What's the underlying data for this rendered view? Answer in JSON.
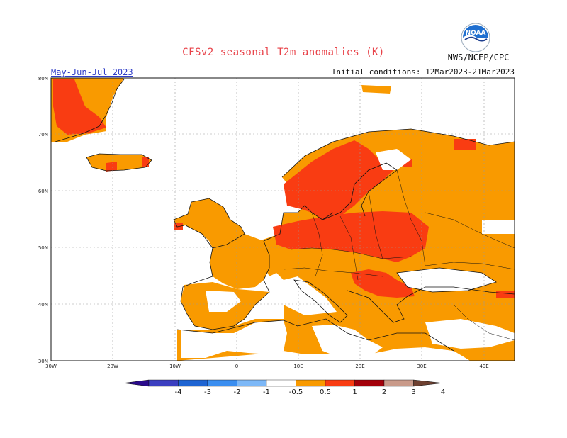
{
  "title": "CFSv2 seasonal T2m anomalies (K)",
  "period": "May-Jun-Jul 2023",
  "initial_conditions": "Initial conditions: 12Mar2023-21Mar2023",
  "agency": "NWS/NCEP/CPC",
  "logo_text": "NOAA",
  "lat_ticks": [
    "30N",
    "40N",
    "50N",
    "60N",
    "70N",
    "80N"
  ],
  "lon_ticks": [
    "30W",
    "20W",
    "10W",
    "0",
    "10E",
    "20E",
    "30E",
    "40E"
  ],
  "colorbar": {
    "labels": [
      "-4",
      "-3",
      "-2",
      "-1",
      "-0.5",
      "0.5",
      "1",
      "2",
      "3",
      "4"
    ],
    "colors": [
      "#2a0a8c",
      "#3b3fc0",
      "#1e64d2",
      "#3a8ef0",
      "#7db8f7",
      "#ffffff",
      "#f99a00",
      "#f93c12",
      "#a3000a",
      "#c99a8a",
      "#6e4030"
    ]
  }
}
